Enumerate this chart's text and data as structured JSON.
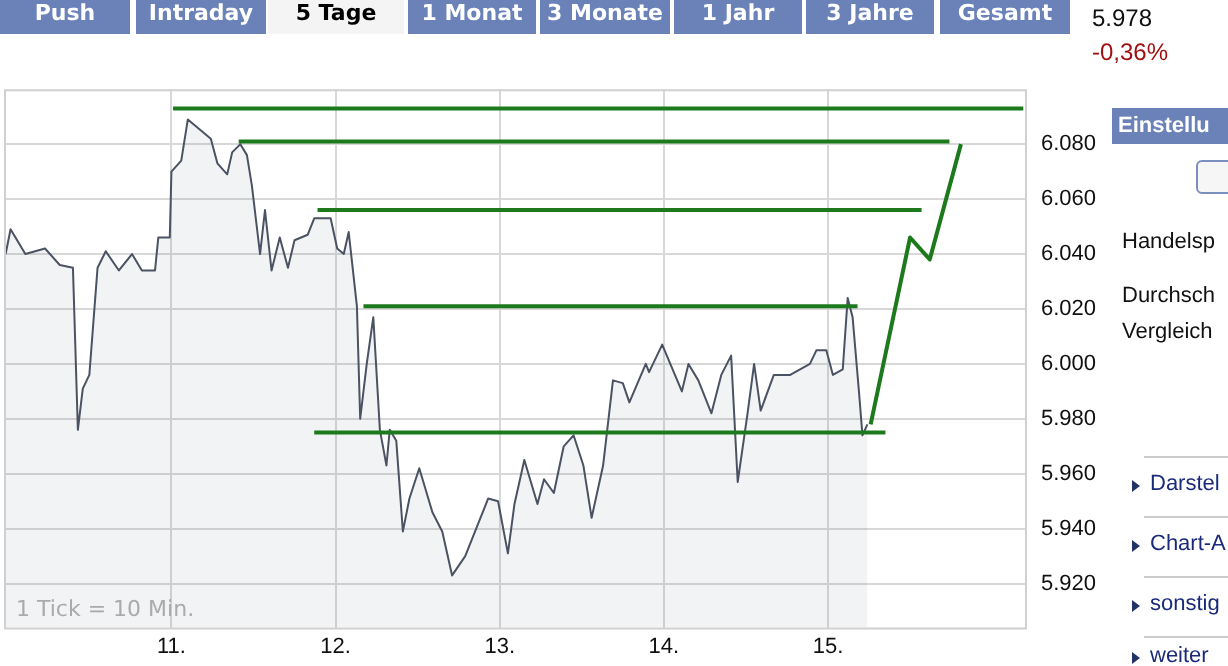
{
  "chart_data": {
    "type": "line",
    "grid": true,
    "legend": false,
    "marker": "none",
    "line_style": "solid",
    "xlim": [
      9.98,
      16.2
    ],
    "ylim": [
      5904,
      6100
    ],
    "xticks": [
      {
        "value": 11,
        "label": "11."
      },
      {
        "value": 12,
        "label": "12."
      },
      {
        "value": 13,
        "label": "13."
      },
      {
        "value": 14,
        "label": "14."
      },
      {
        "value": 15,
        "label": "15."
      }
    ],
    "yticks": [
      {
        "value": 5920,
        "label": "5.920"
      },
      {
        "value": 5940,
        "label": "5.940"
      },
      {
        "value": 5960,
        "label": "5.960"
      },
      {
        "value": 5980,
        "label": "5.980"
      },
      {
        "value": 6000,
        "label": "6.000"
      },
      {
        "value": 6020,
        "label": "6.020"
      },
      {
        "value": 6040,
        "label": "6.040"
      },
      {
        "value": 6060,
        "label": "6.060"
      },
      {
        "value": 6080,
        "label": "6.080"
      }
    ],
    "annotations": [
      "1 Tick = 10 Min.",
      "Push",
      "Intraday",
      "5 Tage",
      "1 Monat",
      "3 Monate",
      "1 Jahr",
      "3 Jahre",
      "Gesamt",
      "5.978",
      "-0,36%",
      "Einstellu",
      "Handelsp",
      "Durchsch",
      "Vergleich",
      "Darstel",
      "Chart-A",
      "sonstig",
      "weiter"
    ],
    "series": [
      {
        "type": "area",
        "color": "#4b5263",
        "x": [
          9.99,
          10.02,
          10.11,
          10.23,
          10.32,
          10.4,
          10.43,
          10.46,
          10.5,
          10.55,
          10.6,
          10.68,
          10.76,
          10.82,
          10.9,
          10.92,
          10.99,
          11.0,
          11.06,
          11.1,
          11.16,
          11.24,
          11.28,
          11.34,
          11.37,
          11.42,
          11.46,
          11.49,
          11.54,
          11.57,
          11.61,
          11.66,
          11.71,
          11.75,
          11.83,
          11.87,
          11.97,
          12.01,
          12.05,
          12.08,
          12.13,
          12.15,
          12.19,
          12.23,
          12.27,
          12.31,
          12.33,
          12.37,
          12.41,
          12.45,
          12.51,
          12.59,
          12.65,
          12.71,
          12.79,
          12.87,
          12.93,
          12.99,
          13.05,
          13.09,
          13.15,
          13.23,
          13.27,
          13.33,
          13.39,
          13.45,
          13.51,
          13.56,
          13.63,
          13.69,
          13.75,
          13.79,
          13.89,
          13.91,
          13.99,
          14.11,
          14.15,
          14.21,
          14.29,
          14.35,
          14.41,
          14.45,
          14.51,
          14.55,
          14.59,
          14.67,
          14.77,
          14.83,
          14.89,
          14.93,
          14.99,
          15.03,
          15.09,
          15.12,
          15.15,
          15.19,
          15.21,
          15.24
        ],
        "values": [
          6040,
          6049,
          6040,
          6042,
          6036,
          6035,
          5976,
          5991,
          5996,
          6035,
          6041,
          6034,
          6040,
          6034,
          6034,
          6046,
          6046,
          6070,
          6074,
          6089,
          6086,
          6082,
          6073,
          6069,
          6077,
          6080,
          6076,
          6065,
          6040,
          6056,
          6034,
          6046,
          6035,
          6045,
          6047,
          6053,
          6053,
          6042,
          6040,
          6048,
          6021,
          5980,
          6000,
          6017,
          5976,
          5963,
          5976,
          5972,
          5939,
          5951,
          5962,
          5946,
          5939,
          5923,
          5930,
          5942,
          5951,
          5950,
          5931,
          5949,
          5965,
          5949,
          5958,
          5953,
          5970,
          5974,
          5963,
          5944,
          5963,
          5994,
          5993,
          5986,
          6000,
          5997,
          6007,
          5990,
          6000,
          5994,
          5982,
          5996,
          6003,
          5957,
          5982,
          6000,
          5983,
          5996,
          5996,
          5998,
          6000,
          6005,
          6005,
          5996,
          5998,
          6024,
          6017,
          5989,
          5974,
          5978
        ]
      },
      {
        "type": "line",
        "color": "#1c7a1c",
        "x": [
          11.01,
          16.19
        ],
        "values": [
          6093,
          6093
        ]
      },
      {
        "type": "line",
        "color": "#1c7a1c",
        "x": [
          11.41,
          15.74
        ],
        "values": [
          6081,
          6081
        ]
      },
      {
        "type": "line",
        "color": "#1c7a1c",
        "x": [
          11.89,
          15.57
        ],
        "values": [
          6056,
          6056
        ]
      },
      {
        "type": "line",
        "color": "#1c7a1c",
        "x": [
          12.17,
          15.18
        ],
        "values": [
          6021,
          6021
        ]
      },
      {
        "type": "line",
        "color": "#1c7a1c",
        "x": [
          11.87,
          15.35
        ],
        "values": [
          5975,
          5975
        ]
      },
      {
        "type": "line",
        "color": "#1c7a1c",
        "x": [
          15.26,
          15.5,
          15.62,
          15.81
        ],
        "values": [
          5978,
          6046,
          6038,
          6080
        ]
      }
    ]
  }
}
